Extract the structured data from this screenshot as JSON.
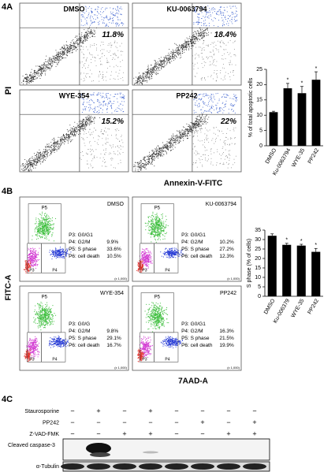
{
  "panel_a": {
    "label": "4A",
    "y_axis": "PI",
    "x_axis": "Annexin-V-FITC",
    "plots": [
      {
        "name": "DMSO",
        "percent": "11.8%"
      },
      {
        "name": "KU-0063794",
        "percent": "18.4%"
      },
      {
        "name": "WYE-354",
        "percent": "15.2%"
      },
      {
        "name": "PP242",
        "percent": "22%"
      }
    ]
  },
  "panel_b": {
    "label": "4B",
    "y_axis": "FITC-A",
    "x_axis": "7AAD-A",
    "axis_note": "(x 1,000)",
    "gates": [
      "P5",
      "P3",
      "P4"
    ],
    "plots": [
      {
        "name": "DMSO",
        "stats": [
          {
            "gate": "P3: G0/G1"
          },
          {
            "gate": "P4: G2/M",
            "value": "9.9%"
          },
          {
            "gate": "P5: S phase",
            "value": "33.6%"
          },
          {
            "gate": "P6: cell death",
            "value": "10.5%"
          }
        ]
      },
      {
        "name": "KU-0063794",
        "stats": [
          {
            "gate": "P3: G0/G1"
          },
          {
            "gate": "P4: G2/M",
            "value": "10.2%"
          },
          {
            "gate": "P5: S phase",
            "value": "27.2%"
          },
          {
            "gate": "P6: cell death",
            "value": "12.3%"
          }
        ]
      },
      {
        "name": "WYE-354",
        "stats": [
          {
            "gate": "P3: G0/G"
          },
          {
            "gate": "P4: G2/M",
            "value": "9.8%"
          },
          {
            "gate": "P5: S phase",
            "value": "29.1%"
          },
          {
            "gate": "P6: cell death",
            "value": "16.7%"
          }
        ]
      },
      {
        "name": "PP242",
        "stats": [
          {
            "gate": "P3: G0/G1"
          },
          {
            "gate": "P4: G2/M",
            "value": "16.3%"
          },
          {
            "gate": "P5: S phase",
            "value": "21.5%"
          },
          {
            "gate": "P6: cell death",
            "value": "19.9%"
          }
        ]
      }
    ]
  },
  "panel_c": {
    "label": "4C",
    "treatments": [
      {
        "name": "Staurosporine",
        "signs": [
          "−",
          "+",
          "−",
          "+",
          "−",
          "−",
          "−",
          "−"
        ]
      },
      {
        "name": "PP242",
        "signs": [
          "−",
          "−",
          "−",
          "−",
          "−",
          "+",
          "−",
          "+"
        ]
      },
      {
        "name": "Z-VAD-FMK",
        "signs": [
          "−",
          "−",
          "+",
          "+",
          "−",
          "−",
          "+",
          "+"
        ]
      }
    ],
    "blots": [
      "Cleaved caspase-3",
      "α-Tubulin"
    ]
  },
  "chart_data": [
    {
      "type": "bar",
      "y_label": "% of total apoptotic cells",
      "categories": [
        "DMSO",
        "Ku-0063794",
        "WYE-35",
        "PP242"
      ],
      "values": [
        11,
        18.8,
        17.2,
        21.6
      ],
      "errors": [
        0.3,
        1.6,
        2.2,
        2.6
      ],
      "annotations": [
        null,
        "*",
        "*",
        "*"
      ],
      "color": "#000000",
      "ylim": [
        0,
        25
      ],
      "yticks": [
        0,
        5,
        10,
        15,
        20,
        25
      ]
    },
    {
      "type": "bar",
      "y_label": "S phase (% of cells)",
      "categories": [
        "DMSO",
        "Ku-006379",
        "WYE-35",
        "PP242"
      ],
      "values": [
        32,
        27.2,
        26.8,
        23.5
      ],
      "errors": [
        1,
        0.8,
        0.7,
        1.8
      ],
      "annotations": [
        null,
        "*",
        "*",
        "*"
      ],
      "color": "#000000",
      "ylim": [
        0,
        35
      ],
      "yticks": [
        0,
        5,
        10,
        15,
        20,
        25,
        30,
        35
      ]
    }
  ]
}
